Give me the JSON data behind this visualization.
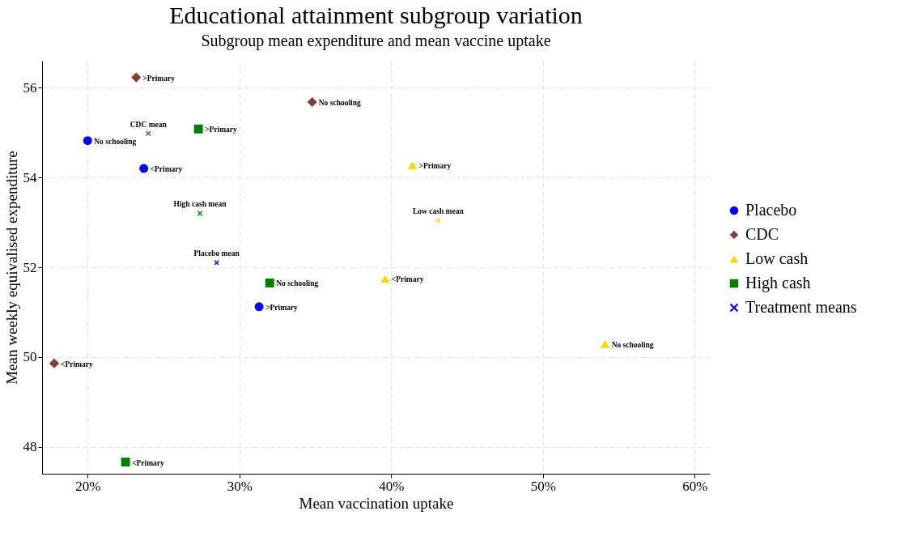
{
  "chart_data": {
    "type": "scatter",
    "title": "Educational attainment subgroup variation",
    "subtitle": "Subgroup mean expenditure and mean vaccine uptake",
    "xlabel": "Mean vaccination uptake",
    "ylabel": "Mean weekly equivalised expenditure",
    "xlim": [
      17,
      61
    ],
    "xticks": [
      {
        "value": 20,
        "label": "20%"
      },
      {
        "value": 30,
        "label": "30%"
      },
      {
        "value": 40,
        "label": "40%"
      },
      {
        "value": 50,
        "label": "50%"
      },
      {
        "value": 60,
        "label": "60%"
      }
    ],
    "ylim": [
      47.4,
      56.6
    ],
    "yticks": [
      48,
      50,
      52,
      54,
      56
    ],
    "grid": true,
    "legend": "right",
    "series": [
      {
        "name": "Placebo",
        "color": "#0000ff",
        "marker": "circle",
        "x": [
          20.0,
          23.7,
          31.3
        ],
        "values": [
          54.82,
          54.2,
          51.12
        ],
        "value_labels": [
          "No schooling",
          "<Primary",
          ">Primary"
        ]
      },
      {
        "name": "CDC",
        "color": "#8b3a3a",
        "marker": "diamond",
        "x": [
          23.2,
          34.8,
          17.8
        ],
        "values": [
          56.23,
          55.68,
          49.86
        ],
        "value_labels": [
          ">Primary",
          "No schooling",
          "<Primary"
        ]
      },
      {
        "name": "Low cash",
        "color": "#ffd700",
        "marker": "triangle",
        "x": [
          41.4,
          39.6,
          54.1
        ],
        "values": [
          54.27,
          51.74,
          50.29
        ],
        "value_labels": [
          ">Primary",
          "<Primary",
          "No schooling"
        ]
      },
      {
        "name": "High cash",
        "color": "#008000",
        "marker": "square",
        "x": [
          27.3,
          32.0,
          22.5
        ],
        "values": [
          55.08,
          51.65,
          47.66
        ],
        "value_labels": [
          ">Primary",
          "No schooling",
          "<Primary"
        ]
      },
      {
        "name": "Treatment means",
        "color": "#0000ff",
        "marker": "cross",
        "x": [
          24.0,
          27.4,
          28.5,
          43.1
        ],
        "values": [
          54.98,
          53.2,
          52.1,
          53.04
        ],
        "colors": [
          "#8b3a3a",
          "#008000",
          "#0000ff",
          "#ffd700"
        ],
        "value_labels": [
          "CDC mean",
          "High cash mean",
          "Placebo mean",
          "Low cash mean"
        ]
      }
    ]
  }
}
